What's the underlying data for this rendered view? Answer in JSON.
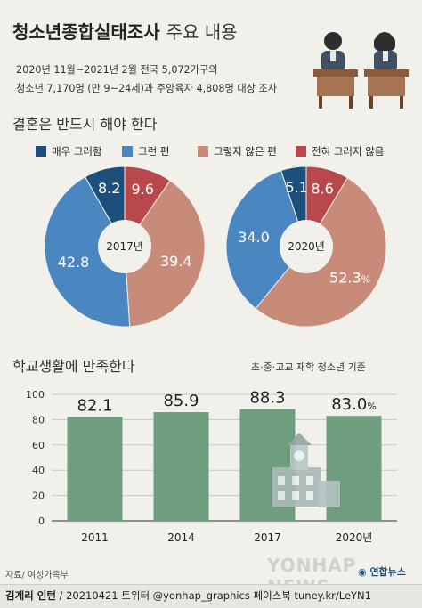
{
  "header": {
    "title_bold": "청소년종합실태조사",
    "title_light": "주요 내용",
    "sub1": "2020년 11월~2021년 2월 전국 5,072가구의",
    "sub2": "청소년 7,170명 (만 9~24세)과 주양육자 4,808명 대상 조사"
  },
  "colors": {
    "dark_blue": "#1d4f7c",
    "blue": "#4a86c0",
    "salmon": "#c98b79",
    "red": "#b8484c",
    "green": "#6f9e7e",
    "bg": "#f1f0eb"
  },
  "chart_data": [
    {
      "type": "pie",
      "title": "결혼은 반드시 해야 한다",
      "legend": [
        "매우 그러함",
        "그런 편",
        "그렇지 않은 편",
        "전혀 그러지 않음"
      ],
      "pies": [
        {
          "label": "2017년",
          "values": [
            8.2,
            42.8,
            39.4,
            9.6
          ],
          "value_labels": [
            "8.2",
            "42.8",
            "39.4",
            "9.6"
          ]
        },
        {
          "label": "2020년",
          "values": [
            5.1,
            34.0,
            52.3,
            8.6
          ],
          "value_labels": [
            "5.1",
            "34.0",
            "52.3",
            "8.6"
          ],
          "unit": "%"
        }
      ]
    },
    {
      "type": "bar",
      "title": "학교생활에 만족한다",
      "note": "초·중·고교 재학 청소년 기준",
      "categories": [
        "2011",
        "2014",
        "2017",
        "2020년"
      ],
      "values": [
        82.1,
        85.9,
        88.3,
        83.0
      ],
      "value_labels": [
        "82.1",
        "85.9",
        "88.3",
        "83.0"
      ],
      "unit": "%",
      "ylim": [
        0,
        100
      ],
      "yticks": [
        0,
        20,
        40,
        60,
        80,
        100
      ]
    }
  ],
  "footer": {
    "source": "자료/ 여성가족부",
    "credit_bold": "김계리 인턴",
    "credit_rest": " / 20210421  트위터 @yonhap_graphics  페이스북 tuney.kr/LeYN1",
    "brand_korean": "연합뉴스",
    "watermark": "YONHAP NEWS"
  }
}
